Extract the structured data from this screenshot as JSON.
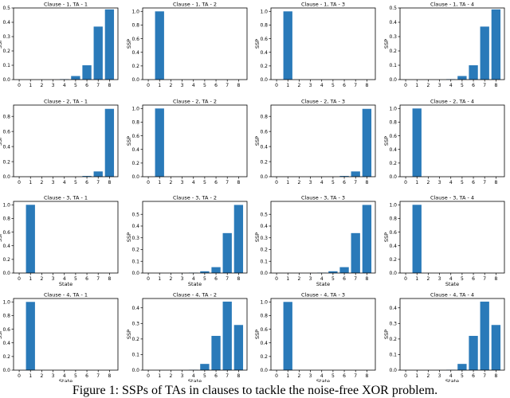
{
  "caption": "Figure 1: SSPs of TAs in clauses to tackle the noise-free XOR problem.",
  "style": {
    "bar_color": "#2a7ab9",
    "axis_color": "#000000"
  },
  "chart_data": [
    {
      "type": "bar",
      "title": "Clause - 1, TA - 1",
      "xlabel": "",
      "ylabel": "SSP",
      "xticks": [
        0,
        1,
        2,
        3,
        4,
        5,
        6,
        7,
        8
      ],
      "yticks": [
        0,
        0.1,
        0.2,
        0.3,
        0.4,
        0.5
      ],
      "ylim": [
        0,
        0.5
      ],
      "categories": [
        1,
        2,
        3,
        4,
        5,
        6,
        7,
        8
      ],
      "values": [
        0,
        0,
        0,
        0.003,
        0.025,
        0.1,
        0.37,
        0.49
      ]
    },
    {
      "type": "bar",
      "title": "Clause - 1, TA - 2",
      "xlabel": "",
      "ylabel": "SSP",
      "xticks": [
        0,
        1,
        2,
        3,
        4,
        5,
        6,
        7,
        8
      ],
      "yticks": [
        0,
        0.2,
        0.4,
        0.6,
        0.8,
        1.0
      ],
      "ylim": [
        0,
        1.05
      ],
      "categories": [
        1,
        2,
        3,
        4,
        5,
        6,
        7,
        8
      ],
      "values": [
        1.0,
        0,
        0,
        0,
        0,
        0,
        0,
        0
      ]
    },
    {
      "type": "bar",
      "title": "Clause - 1, TA - 3",
      "xlabel": "",
      "ylabel": "SSP",
      "xticks": [
        0,
        1,
        2,
        3,
        4,
        5,
        6,
        7,
        8
      ],
      "yticks": [
        0,
        0.2,
        0.4,
        0.6,
        0.8,
        1.0
      ],
      "ylim": [
        0,
        1.05
      ],
      "categories": [
        1,
        2,
        3,
        4,
        5,
        6,
        7,
        8
      ],
      "values": [
        1.0,
        0,
        0,
        0,
        0,
        0,
        0,
        0
      ]
    },
    {
      "type": "bar",
      "title": "Clause - 1, TA - 4",
      "xlabel": "",
      "ylabel": "SSP",
      "xticks": [
        0,
        1,
        2,
        3,
        4,
        5,
        6,
        7,
        8
      ],
      "yticks": [
        0,
        0.1,
        0.2,
        0.3,
        0.4,
        0.5
      ],
      "ylim": [
        0,
        0.5
      ],
      "categories": [
        1,
        2,
        3,
        4,
        5,
        6,
        7,
        8
      ],
      "values": [
        0,
        0,
        0,
        0.003,
        0.025,
        0.1,
        0.37,
        0.49
      ]
    },
    {
      "type": "bar",
      "title": "Clause - 2, TA - 1",
      "xlabel": "",
      "ylabel": "SSP",
      "xticks": [
        0,
        1,
        2,
        3,
        4,
        5,
        6,
        7,
        8
      ],
      "yticks": [
        0,
        0.2,
        0.4,
        0.6,
        0.8
      ],
      "ylim": [
        0,
        0.95
      ],
      "categories": [
        1,
        2,
        3,
        4,
        5,
        6,
        7,
        8
      ],
      "values": [
        0,
        0,
        0,
        0,
        0,
        0.01,
        0.07,
        0.9
      ]
    },
    {
      "type": "bar",
      "title": "Clause - 2, TA - 2",
      "xlabel": "",
      "ylabel": "SSP",
      "xticks": [
        0,
        1,
        2,
        3,
        4,
        5,
        6,
        7,
        8
      ],
      "yticks": [
        0,
        0.2,
        0.4,
        0.6,
        0.8,
        1.0
      ],
      "ylim": [
        0,
        1.05
      ],
      "categories": [
        1,
        2,
        3,
        4,
        5,
        6,
        7,
        8
      ],
      "values": [
        1.0,
        0,
        0,
        0,
        0,
        0,
        0,
        0
      ]
    },
    {
      "type": "bar",
      "title": "Clause - 2, TA - 3",
      "xlabel": "",
      "ylabel": "SSP",
      "xticks": [
        0,
        1,
        2,
        3,
        4,
        5,
        6,
        7,
        8
      ],
      "yticks": [
        0,
        0.2,
        0.4,
        0.6,
        0.8
      ],
      "ylim": [
        0,
        0.95
      ],
      "categories": [
        1,
        2,
        3,
        4,
        5,
        6,
        7,
        8
      ],
      "values": [
        0,
        0,
        0,
        0,
        0,
        0.01,
        0.07,
        0.9
      ]
    },
    {
      "type": "bar",
      "title": "Clause - 2, TA - 4",
      "xlabel": "",
      "ylabel": "SSP",
      "xticks": [
        0,
        1,
        2,
        3,
        4,
        5,
        6,
        7,
        8
      ],
      "yticks": [
        0,
        0.2,
        0.4,
        0.6,
        0.8,
        1.0
      ],
      "ylim": [
        0,
        1.05
      ],
      "categories": [
        1,
        2,
        3,
        4,
        5,
        6,
        7,
        8
      ],
      "values": [
        1.0,
        0,
        0,
        0,
        0,
        0,
        0,
        0
      ]
    },
    {
      "type": "bar",
      "title": "Clause - 3, TA - 1",
      "xlabel": "State",
      "ylabel": "SSP",
      "xticks": [
        0,
        1,
        2,
        3,
        4,
        5,
        6,
        7,
        8
      ],
      "yticks": [
        0,
        0.2,
        0.4,
        0.6,
        0.8,
        1.0
      ],
      "ylim": [
        0,
        1.05
      ],
      "categories": [
        1,
        2,
        3,
        4,
        5,
        6,
        7,
        8
      ],
      "values": [
        1.0,
        0,
        0,
        0,
        0,
        0,
        0,
        0
      ]
    },
    {
      "type": "bar",
      "title": "Clause - 3, TA - 2",
      "xlabel": "State",
      "ylabel": "SSP",
      "xticks": [
        0,
        1,
        2,
        3,
        4,
        5,
        6,
        7,
        8
      ],
      "yticks": [
        0,
        0.1,
        0.2,
        0.3,
        0.4,
        0.5
      ],
      "ylim": [
        0,
        0.61
      ],
      "categories": [
        1,
        2,
        3,
        4,
        5,
        6,
        7,
        8
      ],
      "values": [
        0,
        0,
        0,
        0.003,
        0.015,
        0.05,
        0.34,
        0.58
      ]
    },
    {
      "type": "bar",
      "title": "Clause - 3, TA - 3",
      "xlabel": "State",
      "ylabel": "SSP",
      "xticks": [
        0,
        1,
        2,
        3,
        4,
        5,
        6,
        7,
        8
      ],
      "yticks": [
        0,
        0.1,
        0.2,
        0.3,
        0.4,
        0.5
      ],
      "ylim": [
        0,
        0.61
      ],
      "categories": [
        1,
        2,
        3,
        4,
        5,
        6,
        7,
        8
      ],
      "values": [
        0,
        0,
        0,
        0.003,
        0.015,
        0.05,
        0.34,
        0.58
      ]
    },
    {
      "type": "bar",
      "title": "Clause - 3, TA - 4",
      "xlabel": "State",
      "ylabel": "SSP",
      "xticks": [
        0,
        1,
        2,
        3,
        4,
        5,
        6,
        7,
        8
      ],
      "yticks": [
        0,
        0.2,
        0.4,
        0.6,
        0.8,
        1.0
      ],
      "ylim": [
        0,
        1.05
      ],
      "categories": [
        1,
        2,
        3,
        4,
        5,
        6,
        7,
        8
      ],
      "values": [
        1.0,
        0,
        0,
        0,
        0,
        0,
        0,
        0
      ]
    },
    {
      "type": "bar",
      "title": "Clause - 4, TA - 1",
      "xlabel": "State",
      "ylabel": "SSP",
      "xticks": [
        0,
        1,
        2,
        3,
        4,
        5,
        6,
        7,
        8
      ],
      "yticks": [
        0,
        0.2,
        0.4,
        0.6,
        0.8,
        1.0
      ],
      "ylim": [
        0,
        1.05
      ],
      "categories": [
        1,
        2,
        3,
        4,
        5,
        6,
        7,
        8
      ],
      "values": [
        1.0,
        0,
        0,
        0,
        0,
        0,
        0,
        0
      ]
    },
    {
      "type": "bar",
      "title": "Clause - 4, TA - 2",
      "xlabel": "State",
      "ylabel": "SSP",
      "xticks": [
        0,
        1,
        2,
        3,
        4,
        5,
        6,
        7,
        8
      ],
      "yticks": [
        0,
        0.1,
        0.2,
        0.3,
        0.4
      ],
      "ylim": [
        0,
        0.46
      ],
      "categories": [
        1,
        2,
        3,
        4,
        5,
        6,
        7,
        8
      ],
      "values": [
        0,
        0,
        0,
        0.002,
        0.04,
        0.22,
        0.44,
        0.29
      ]
    },
    {
      "type": "bar",
      "title": "Clause - 4, TA - 3",
      "xlabel": "State",
      "ylabel": "SSP",
      "xticks": [
        0,
        1,
        2,
        3,
        4,
        5,
        6,
        7,
        8
      ],
      "yticks": [
        0,
        0.2,
        0.4,
        0.6,
        0.8,
        1.0
      ],
      "ylim": [
        0,
        1.05
      ],
      "categories": [
        1,
        2,
        3,
        4,
        5,
        6,
        7,
        8
      ],
      "values": [
        1.0,
        0,
        0,
        0,
        0,
        0,
        0,
        0
      ]
    },
    {
      "type": "bar",
      "title": "Clause - 4, TA - 4",
      "xlabel": "State",
      "ylabel": "SSP",
      "xticks": [
        0,
        1,
        2,
        3,
        4,
        5,
        6,
        7,
        8
      ],
      "yticks": [
        0,
        0.1,
        0.2,
        0.3,
        0.4
      ],
      "ylim": [
        0,
        0.46
      ],
      "categories": [
        1,
        2,
        3,
        4,
        5,
        6,
        7,
        8
      ],
      "values": [
        0,
        0,
        0,
        0.002,
        0.04,
        0.22,
        0.44,
        0.29
      ]
    }
  ]
}
